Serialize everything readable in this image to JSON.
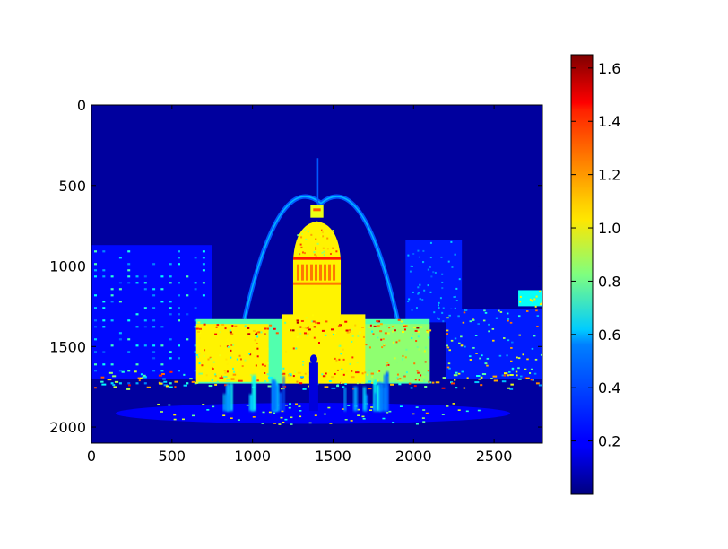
{
  "chart_data": {
    "type": "heatmap",
    "title": "",
    "xlabel": "",
    "ylabel": "",
    "xlim": [
      0,
      2800
    ],
    "ylim": [
      2100,
      0
    ],
    "y_axis_inverted": true,
    "x_ticks": [
      0,
      500,
      1000,
      1500,
      2000,
      2500
    ],
    "x_tick_labels": [
      "0",
      "500",
      "1000",
      "1500",
      "2000",
      "2500"
    ],
    "y_ticks": [
      0,
      500,
      1000,
      1500,
      2000
    ],
    "y_tick_labels": [
      "0",
      "500",
      "1000",
      "1500",
      "2000"
    ],
    "colormap": "jet",
    "colorbar": {
      "vmin": 0.0,
      "vmax": 1.65,
      "ticks": [
        0.2,
        0.4,
        0.6,
        0.8,
        1.0,
        1.2,
        1.4,
        1.6
      ],
      "tick_labels": [
        "0.2",
        "0.4",
        "0.6",
        "0.8",
        "1.0",
        "1.2",
        "1.4",
        "1.6"
      ]
    },
    "background_value": 0.05,
    "regions": [
      {
        "name": "left-building",
        "x": [
          0,
          750
        ],
        "y": [
          870,
          1700
        ],
        "value": 0.22
      },
      {
        "name": "left-building-lights",
        "x": [
          0,
          750
        ],
        "y": [
          870,
          1700
        ],
        "value": 0.55
      },
      {
        "name": "right-tower",
        "x": [
          1950,
          2300
        ],
        "y": [
          840,
          1350
        ],
        "value": 0.25
      },
      {
        "name": "right-low-building",
        "x": [
          2200,
          2800
        ],
        "y": [
          1100,
          1700
        ],
        "value": 0.25
      },
      {
        "name": "far-right-lights",
        "x": [
          2650,
          2800
        ],
        "y": [
          1150,
          1250
        ],
        "value": 1.05
      },
      {
        "name": "dome",
        "x": [
          1230,
          1570
        ],
        "y": [
          700,
          1330
        ],
        "value": 1.05
      },
      {
        "name": "dome-detail",
        "x": [
          1230,
          1570
        ],
        "y": [
          700,
          1330
        ],
        "value": 1.25
      },
      {
        "name": "lantern",
        "x": [
          1360,
          1440
        ],
        "y": [
          620,
          700
        ],
        "value": 1.0
      },
      {
        "name": "spire",
        "x": [
          1395,
          1415
        ],
        "y": [
          330,
          620
        ],
        "value": 0.35
      },
      {
        "name": "arch",
        "x": [
          950,
          1900
        ],
        "y": [
          600,
          1330
        ],
        "value": 0.35
      },
      {
        "name": "courthouse-body",
        "x": [
          650,
          2100
        ],
        "y": [
          1330,
          1730
        ],
        "value": 1.0
      },
      {
        "name": "courthouse-center",
        "x": [
          1180,
          1700
        ],
        "y": [
          1300,
          1730
        ],
        "value": 1.05
      },
      {
        "name": "courthouse-left-wing",
        "x": [
          650,
          1100
        ],
        "y": [
          1360,
          1720
        ],
        "value": 1.05
      },
      {
        "name": "courthouse-right-wing",
        "x": [
          1700,
          2100
        ],
        "y": [
          1360,
          1720
        ],
        "value": 0.85
      },
      {
        "name": "courthouse-roof-accents",
        "x": [
          650,
          2100
        ],
        "y": [
          1330,
          1420
        ],
        "value": 1.35
      },
      {
        "name": "street-lights-row",
        "x": [
          0,
          2800
        ],
        "y": [
          1650,
          1760
        ],
        "value": 1.05
      },
      {
        "name": "fountain-left",
        "x": [
          800,
          1200
        ],
        "y": [
          1650,
          1900
        ],
        "value": 0.5
      },
      {
        "name": "fountain-right",
        "x": [
          1500,
          1850
        ],
        "y": [
          1650,
          1900
        ],
        "value": 0.5
      },
      {
        "name": "statue",
        "x": [
          1330,
          1430
        ],
        "y": [
          1550,
          1900
        ],
        "value": 0.15
      },
      {
        "name": "fountain-basin",
        "x": [
          150,
          2600
        ],
        "y": [
          1850,
          1980
        ],
        "value": 0.2
      },
      {
        "name": "basin-rim-lights",
        "x": [
          400,
          2400
        ],
        "y": [
          1850,
          1980
        ],
        "value": 1.0
      }
    ]
  }
}
